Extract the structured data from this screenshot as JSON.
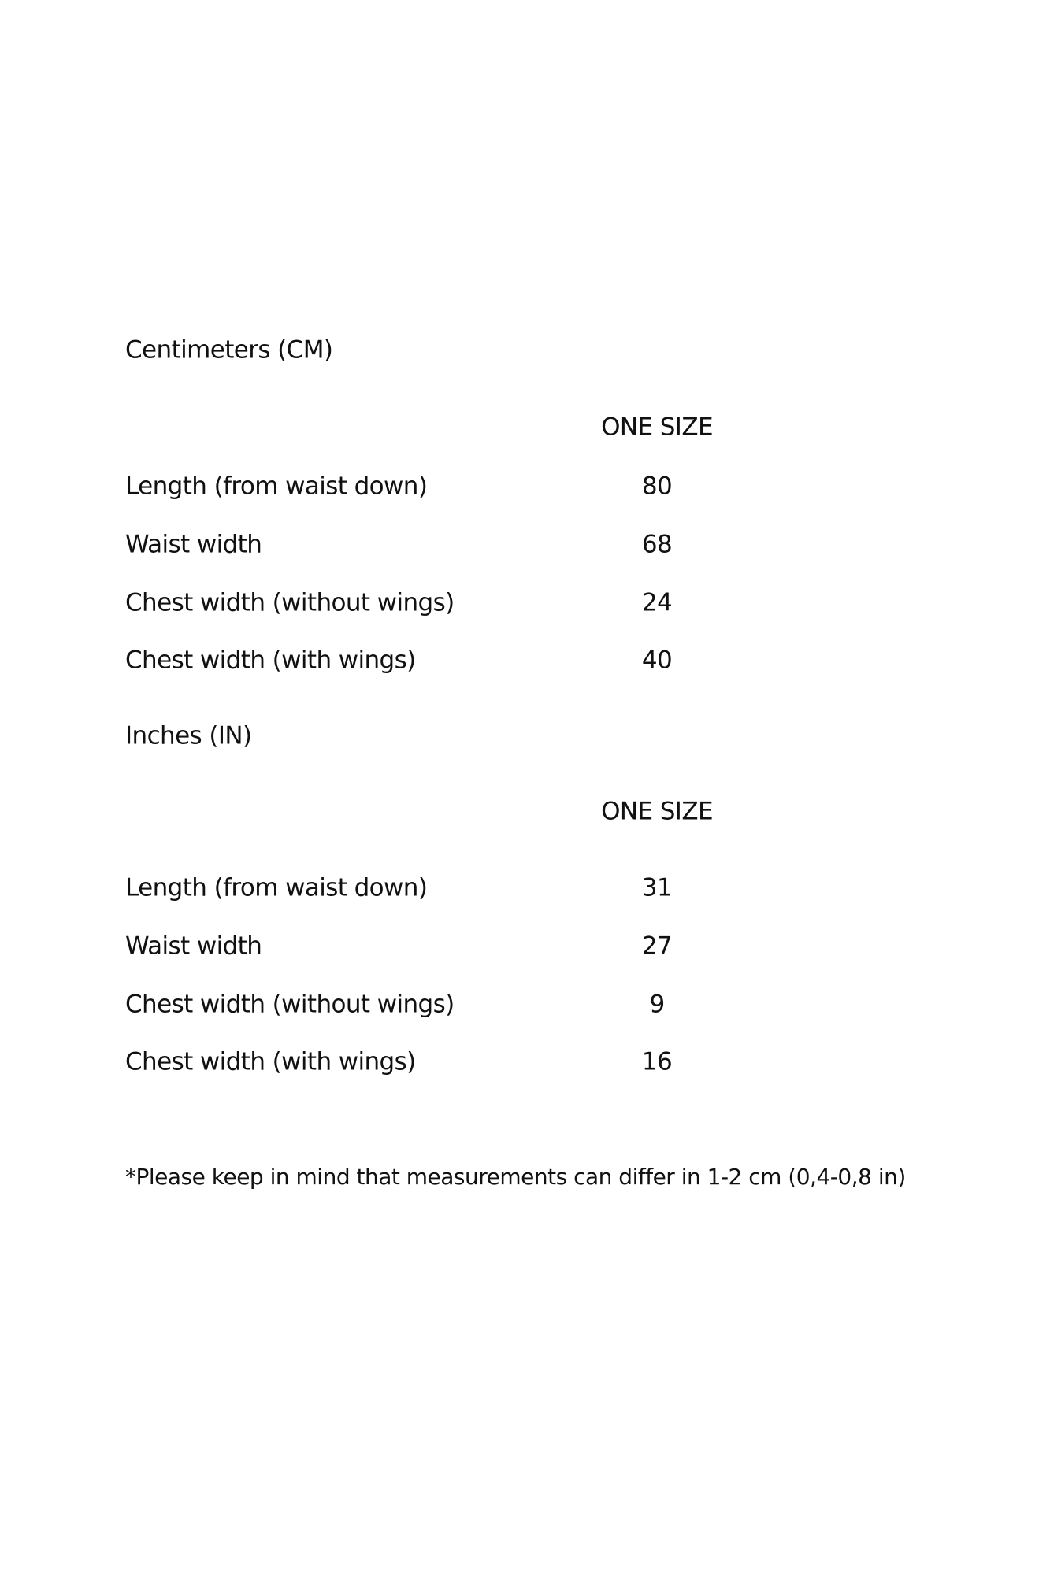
{
  "cm": {
    "heading": "Centimeters (CM)",
    "column_header": "ONE SIZE",
    "rows": [
      {
        "label": "Length (from waist down)",
        "value": "80"
      },
      {
        "label": "Waist width",
        "value": "68"
      },
      {
        "label": "Chest width (without wings)",
        "value": "24"
      },
      {
        "label": "Chest width (with wings)",
        "value": "40"
      }
    ]
  },
  "in": {
    "heading": "Inches (IN)",
    "column_header": "ONE SIZE",
    "rows": [
      {
        "label": "Length (from waist down)",
        "value": "31"
      },
      {
        "label": "Waist width",
        "value": "27"
      },
      {
        "label": "Chest width (without wings)",
        "value": "9"
      },
      {
        "label": "Chest width (with wings)",
        "value": "16"
      }
    ]
  },
  "note": "*Please keep in mind that measurements can differ in 1-2 cm (0,4-0,8 in)"
}
